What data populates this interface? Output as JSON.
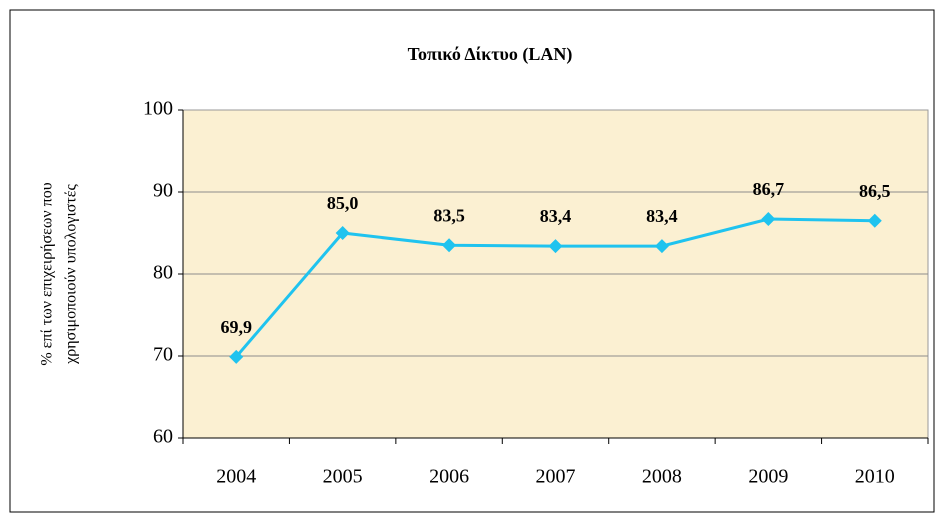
{
  "chart_data": {
    "type": "line",
    "title": "Τοπικό Δίκτυο (LAN)",
    "ylabel": [
      "% επί των επιχειρήσεων που",
      "χρησιμοποιούν υπολογιστές"
    ],
    "categories": [
      "2004",
      "2005",
      "2006",
      "2007",
      "2008",
      "2009",
      "2010"
    ],
    "values": [
      69.9,
      85.0,
      83.5,
      83.4,
      83.4,
      86.7,
      86.5
    ],
    "value_labels": [
      "69,9",
      "85,0",
      "83,5",
      "83,4",
      "83,4",
      "86,7",
      "86,5"
    ],
    "color": "#1fc3ef",
    "ylim": [
      60,
      100
    ],
    "yticks": [
      60,
      70,
      80,
      90,
      100
    ],
    "grid": true
  }
}
